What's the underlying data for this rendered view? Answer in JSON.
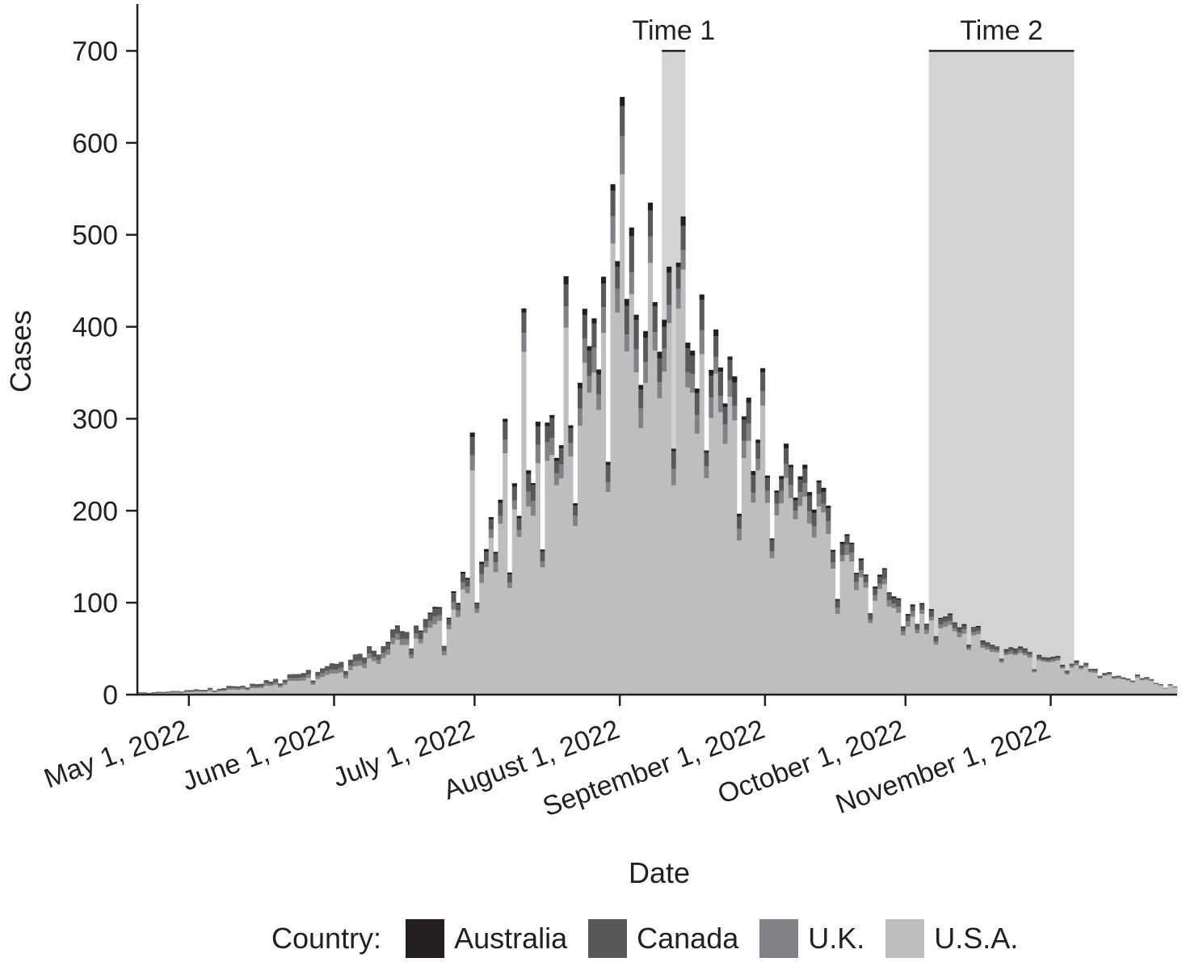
{
  "chart_data": {
    "type": "bar",
    "stacked": true,
    "xlabel": "Date",
    "ylabel": "Cases",
    "ylim": [
      0,
      750
    ],
    "yticks": [
      0,
      100,
      200,
      300,
      400,
      500,
      600,
      700
    ],
    "xlim": [
      "2022-04-20",
      "2022-11-28"
    ],
    "xticks": [
      {
        "date": "2022-05-01",
        "label": "May 1, 2022"
      },
      {
        "date": "2022-06-01",
        "label": "June 1, 2022"
      },
      {
        "date": "2022-07-01",
        "label": "July 1, 2022"
      },
      {
        "date": "2022-08-01",
        "label": "August 1, 2022"
      },
      {
        "date": "2022-09-01",
        "label": "September 1, 2022"
      },
      {
        "date": "2022-10-01",
        "label": "October 1, 2022"
      },
      {
        "date": "2022-11-01",
        "label": "November 1, 2022"
      }
    ],
    "grid": false,
    "legend_position": "bottom",
    "legend_title": "Country:",
    "series": [
      {
        "name": "Australia",
        "color": "#231f20"
      },
      {
        "name": "Canada",
        "color": "#58595b"
      },
      {
        "name": "U.K.",
        "color": "#808285"
      },
      {
        "name": "U.S.A.",
        "color": "#bcbec0"
      }
    ],
    "shaded_periods": [
      {
        "label": "Time 1",
        "start": "2022-08-10",
        "end": "2022-08-15",
        "color": "#d1d3d4",
        "top": 700
      },
      {
        "label": "Time 2",
        "start": "2022-10-06",
        "end": "2022-11-06",
        "color": "#d1d3d4",
        "top": 700
      }
    ],
    "weekly_peaks": [
      {
        "week_start": "2022-04-20",
        "total": 3
      },
      {
        "week_start": "2022-04-27",
        "total": 6
      },
      {
        "week_start": "2022-05-04",
        "total": 8
      },
      {
        "week_start": "2022-05-11",
        "total": 14
      },
      {
        "week_start": "2022-05-18",
        "total": 22
      },
      {
        "week_start": "2022-05-25",
        "total": 32
      },
      {
        "week_start": "2022-06-01",
        "total": 45
      },
      {
        "week_start": "2022-06-08",
        "total": 68
      },
      {
        "week_start": "2022-06-15",
        "total": 90
      },
      {
        "week_start": "2022-06-22",
        "total": 105
      },
      {
        "week_start": "2022-06-29",
        "total": 175
      },
      {
        "week_start": "2022-07-06",
        "total": 260
      },
      {
        "week_start": "2022-07-13",
        "total": 330
      },
      {
        "week_start": "2022-07-20",
        "total": 420
      },
      {
        "week_start": "2022-07-27",
        "total": 510
      },
      {
        "week_start": "2022-08-03",
        "total": 515
      },
      {
        "week_start": "2022-08-10",
        "total": 520
      },
      {
        "week_start": "2022-08-17",
        "total": 410
      },
      {
        "week_start": "2022-08-24",
        "total": 345
      },
      {
        "week_start": "2022-08-31",
        "total": 300
      },
      {
        "week_start": "2022-09-07",
        "total": 250
      },
      {
        "week_start": "2022-09-14",
        "total": 195
      },
      {
        "week_start": "2022-09-21",
        "total": 150
      },
      {
        "week_start": "2022-09-28",
        "total": 110
      },
      {
        "week_start": "2022-10-05",
        "total": 95
      },
      {
        "week_start": "2022-10-12",
        "total": 78
      },
      {
        "week_start": "2022-10-19",
        "total": 62
      },
      {
        "week_start": "2022-10-26",
        "total": 50
      },
      {
        "week_start": "2022-11-02",
        "total": 40
      },
      {
        "week_start": "2022-11-09",
        "total": 30
      },
      {
        "week_start": "2022-11-16",
        "total": 22
      },
      {
        "week_start": "2022-11-23",
        "total": 12
      }
    ],
    "daily_spikes": [
      {
        "date": "2022-07-30",
        "total": 555
      },
      {
        "date": "2022-08-01",
        "total": 650
      },
      {
        "date": "2022-08-07",
        "total": 535
      },
      {
        "date": "2022-08-14",
        "total": 520
      },
      {
        "date": "2022-07-20",
        "total": 455
      },
      {
        "date": "2022-07-11",
        "total": 420
      },
      {
        "date": "2022-06-30",
        "total": 285
      },
      {
        "date": "2022-07-07",
        "total": 300
      },
      {
        "date": "2022-08-31",
        "total": 355
      },
      {
        "date": "2022-09-09",
        "total": 250
      }
    ]
  }
}
